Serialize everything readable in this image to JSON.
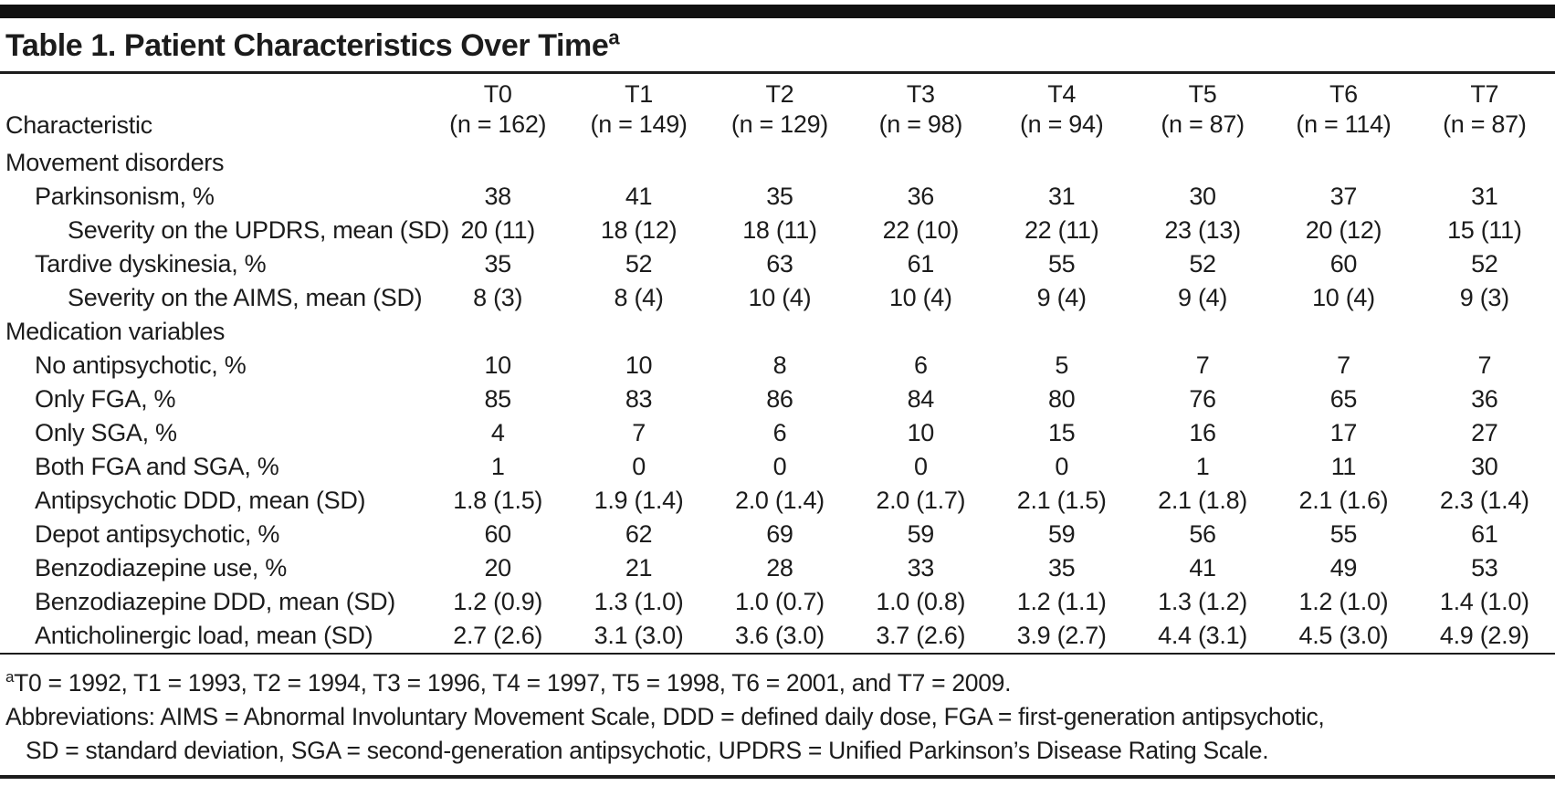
{
  "title": {
    "text": "Table 1. Patient Characteristics Over Time",
    "superscript": "a"
  },
  "table": {
    "characteristic_header": "Characteristic",
    "columns": [
      {
        "label": "T0",
        "n": "(n = 162)"
      },
      {
        "label": "T1",
        "n": "(n = 149)"
      },
      {
        "label": "T2",
        "n": "(n = 129)"
      },
      {
        "label": "T3",
        "n": "(n = 98)"
      },
      {
        "label": "T4",
        "n": "(n = 94)"
      },
      {
        "label": "T5",
        "n": "(n = 87)"
      },
      {
        "label": "T6",
        "n": "(n = 114)"
      },
      {
        "label": "T7",
        "n": "(n = 87)"
      }
    ],
    "rows": [
      {
        "label": "Movement disorders",
        "indent": 0,
        "section": true,
        "values": [
          "",
          "",
          "",
          "",
          "",
          "",
          "",
          ""
        ]
      },
      {
        "label": "Parkinsonism, %",
        "indent": 1,
        "section": false,
        "values": [
          "38",
          "41",
          "35",
          "36",
          "31",
          "30",
          "37",
          "31"
        ]
      },
      {
        "label": "Severity on the UPDRS, mean (SD)",
        "indent": 2,
        "section": false,
        "values": [
          "20 (11)",
          "18 (12)",
          "18 (11)",
          "22 (10)",
          "22 (11)",
          "23 (13)",
          "20 (12)",
          "15 (11)"
        ]
      },
      {
        "label": "Tardive dyskinesia, %",
        "indent": 1,
        "section": false,
        "values": [
          "35",
          "52",
          "63",
          "61",
          "55",
          "52",
          "60",
          "52"
        ]
      },
      {
        "label": "Severity on the AIMS, mean (SD)",
        "indent": 2,
        "section": false,
        "values": [
          "8 (3)",
          "8 (4)",
          "10 (4)",
          "10 (4)",
          "9 (4)",
          "9 (4)",
          "10 (4)",
          "9 (3)"
        ]
      },
      {
        "label": "Medication variables",
        "indent": 0,
        "section": true,
        "values": [
          "",
          "",
          "",
          "",
          "",
          "",
          "",
          ""
        ]
      },
      {
        "label": "No antipsychotic, %",
        "indent": 1,
        "section": false,
        "values": [
          "10",
          "10",
          "8",
          "6",
          "5",
          "7",
          "7",
          "7"
        ]
      },
      {
        "label": "Only FGA, %",
        "indent": 1,
        "section": false,
        "values": [
          "85",
          "83",
          "86",
          "84",
          "80",
          "76",
          "65",
          "36"
        ]
      },
      {
        "label": "Only SGA, %",
        "indent": 1,
        "section": false,
        "values": [
          "4",
          "7",
          "6",
          "10",
          "15",
          "16",
          "17",
          "27"
        ]
      },
      {
        "label": "Both FGA and SGA, %",
        "indent": 1,
        "section": false,
        "values": [
          "1",
          "0",
          "0",
          "0",
          "0",
          "1",
          "11",
          "30"
        ]
      },
      {
        "label": "Antipsychotic DDD, mean (SD)",
        "indent": 1,
        "section": false,
        "values": [
          "1.8 (1.5)",
          "1.9 (1.4)",
          "2.0 (1.4)",
          "2.0 (1.7)",
          "2.1 (1.5)",
          "2.1 (1.8)",
          "2.1 (1.6)",
          "2.3 (1.4)"
        ]
      },
      {
        "label": "Depot antipsychotic, %",
        "indent": 1,
        "section": false,
        "values": [
          "60",
          "62",
          "69",
          "59",
          "59",
          "56",
          "55",
          "61"
        ]
      },
      {
        "label": "Benzodiazepine use, %",
        "indent": 1,
        "section": false,
        "values": [
          "20",
          "21",
          "28",
          "33",
          "35",
          "41",
          "49",
          "53"
        ]
      },
      {
        "label": "Benzodiazepine DDD, mean (SD)",
        "indent": 1,
        "section": false,
        "values": [
          "1.2 (0.9)",
          "1.3 (1.0)",
          "1.0 (0.7)",
          "1.0 (0.8)",
          "1.2 (1.1)",
          "1.3 (1.2)",
          "1.2 (1.0)",
          "1.4 (1.0)"
        ]
      },
      {
        "label": "Anticholinergic load, mean (SD)",
        "indent": 1,
        "section": false,
        "values": [
          "2.7 (2.6)",
          "3.1 (3.0)",
          "3.6 (3.0)",
          "3.7 (2.6)",
          "3.9 (2.7)",
          "4.4 (3.1)",
          "4.5 (3.0)",
          "4.9 (2.9)"
        ]
      }
    ]
  },
  "footnotes": {
    "timepoints_marker": "a",
    "timepoints_text": "T0 = 1992, T1 = 1993, T2 = 1994, T3 = 1996, T4 = 1997, T5 = 1998, T6 = 2001, and T7 = 2009.",
    "abbreviations_line1": "Abbreviations: AIMS = Abnormal Involuntary Movement Scale, DDD = defined daily dose, FGA = first-generation antipsychotic,",
    "abbreviations_line2": "SD = standard deviation, SGA = second-generation antipsychotic, UPDRS = Unified Parkinson’s Disease Rating Scale."
  }
}
